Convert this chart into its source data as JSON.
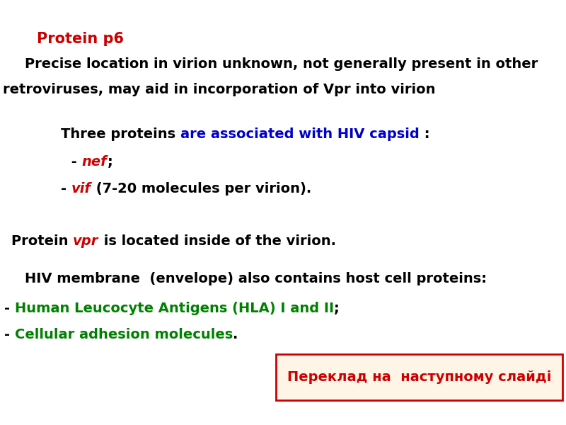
{
  "bg_color": "#ffffff",
  "title_text": "Protein p6",
  "title_color": "#cc0000",
  "line1": "    Precise location in virion unknown, not generally present in other",
  "line2": "retroviruses, may aid in incorporation of Vpr into virion",
  "three_proteins_black": "Three proteins ",
  "three_proteins_blue": "are associated with HIV capsid",
  "three_proteins_colon": " :",
  "nef_dash": " - ",
  "nef_italic": "nef",
  "nef_semicolon": ";",
  "vif_dash": "- ",
  "vif_italic": "vif",
  "vif_rest": " (7-20 molecules per virion).",
  "vpr_black1": "Protein ",
  "vpr_italic": "vpr",
  "vpr_black2": " is located inside of the virion.",
  "membrane_line": "    HIV membrane  (envelope) also contains host cell proteins:",
  "hla_dash": "- ",
  "hla_green": "Human Leucocyte Antigens (HLA) I and II",
  "hla_semi": ";",
  "cell_dash": "- ",
  "cell_green": "Cellular adhesion molecules",
  "cell_dot": ".",
  "box_text": "Переклад на  наступному слайді",
  "box_text_color": "#cc0000",
  "box_bg": "#fff5e6",
  "box_border": "#cc0000",
  "black": "#000000",
  "red": "#cc0000",
  "blue": "#0000cc",
  "green": "#008000",
  "font_size_title": 15,
  "font_size_body": 14,
  "font_size_box": 14
}
